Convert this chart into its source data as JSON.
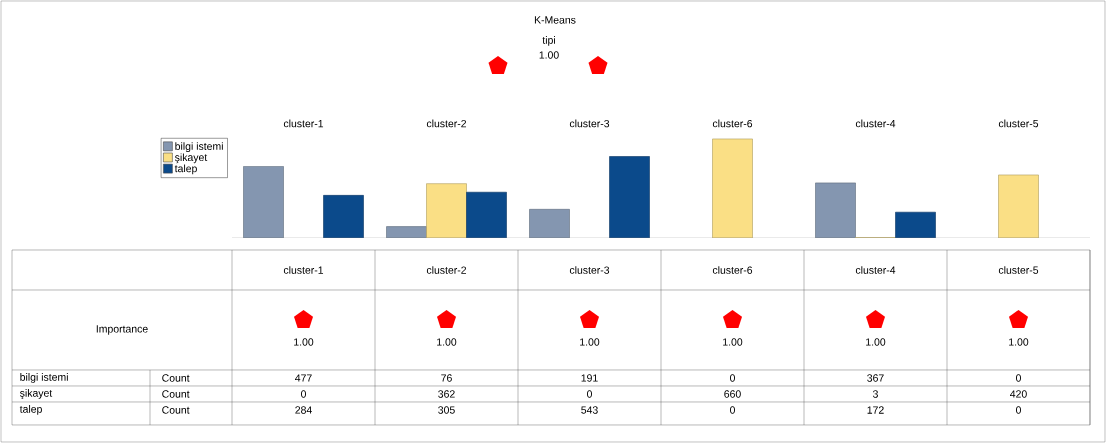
{
  "chart_data": {
    "type": "bar",
    "title": "K-Means",
    "categories": [
      "cluster-1",
      "cluster-2",
      "cluster-3",
      "cluster-6",
      "cluster-4",
      "cluster-5"
    ],
    "series": [
      {
        "name": "bilgi istemi",
        "color": "#8496b0",
        "values": [
          477,
          76,
          191,
          0,
          367,
          0
        ]
      },
      {
        "name": "şikayet",
        "color": "#fadf85",
        "values": [
          0,
          362,
          0,
          660,
          3,
          420
        ]
      },
      {
        "name": "talep",
        "color": "#0b4a8b",
        "values": [
          284,
          305,
          543,
          0,
          172,
          0
        ]
      }
    ],
    "data_labels": true,
    "legend": "left",
    "annotations": [
      "tipi",
      "1.00",
      "Importance",
      "Count"
    ]
  }
}
